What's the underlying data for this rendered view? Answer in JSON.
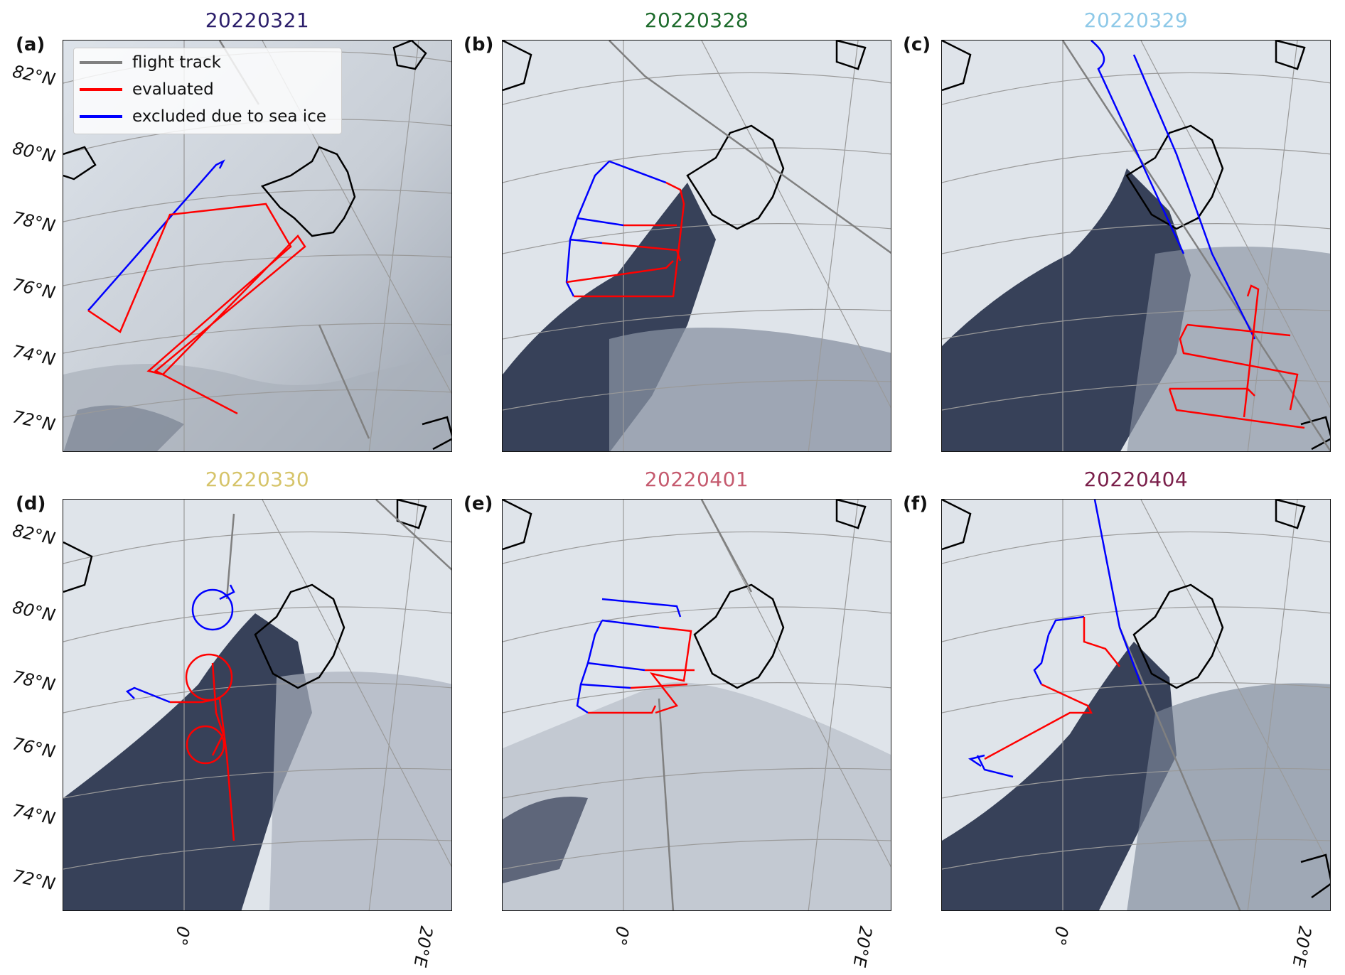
{
  "panels": [
    {
      "label": "(a)",
      "date": "20220321",
      "color": "#2c1f6b"
    },
    {
      "label": "(b)",
      "date": "20220328",
      "color": "#1d6b2c"
    },
    {
      "label": "(c)",
      "date": "20220329",
      "color": "#8ec9e8"
    },
    {
      "label": "(d)",
      "date": "20220330",
      "color": "#d6c46a"
    },
    {
      "label": "(e)",
      "date": "20220401",
      "color": "#c55a6e"
    },
    {
      "label": "(f)",
      "date": "20220404",
      "color": "#7a1f4a"
    }
  ],
  "latitude_labels": [
    "82°N",
    "80°N",
    "78°N",
    "76°N",
    "74°N",
    "72°N"
  ],
  "longitude_labels": [
    "0°",
    "20°E"
  ],
  "legend": {
    "items": [
      {
        "label": "flight track",
        "color": "#808080"
      },
      {
        "label": "evaluated",
        "color": "#ff0000"
      },
      {
        "label": "excluded due to sea ice",
        "color": "#0000ff"
      }
    ]
  },
  "colors": {
    "track": "#808080",
    "evaluated": "#ff0000",
    "excluded": "#0000ff",
    "coast": "#000000",
    "ocean": "#1a2540",
    "ice": "#e6eaf0"
  }
}
